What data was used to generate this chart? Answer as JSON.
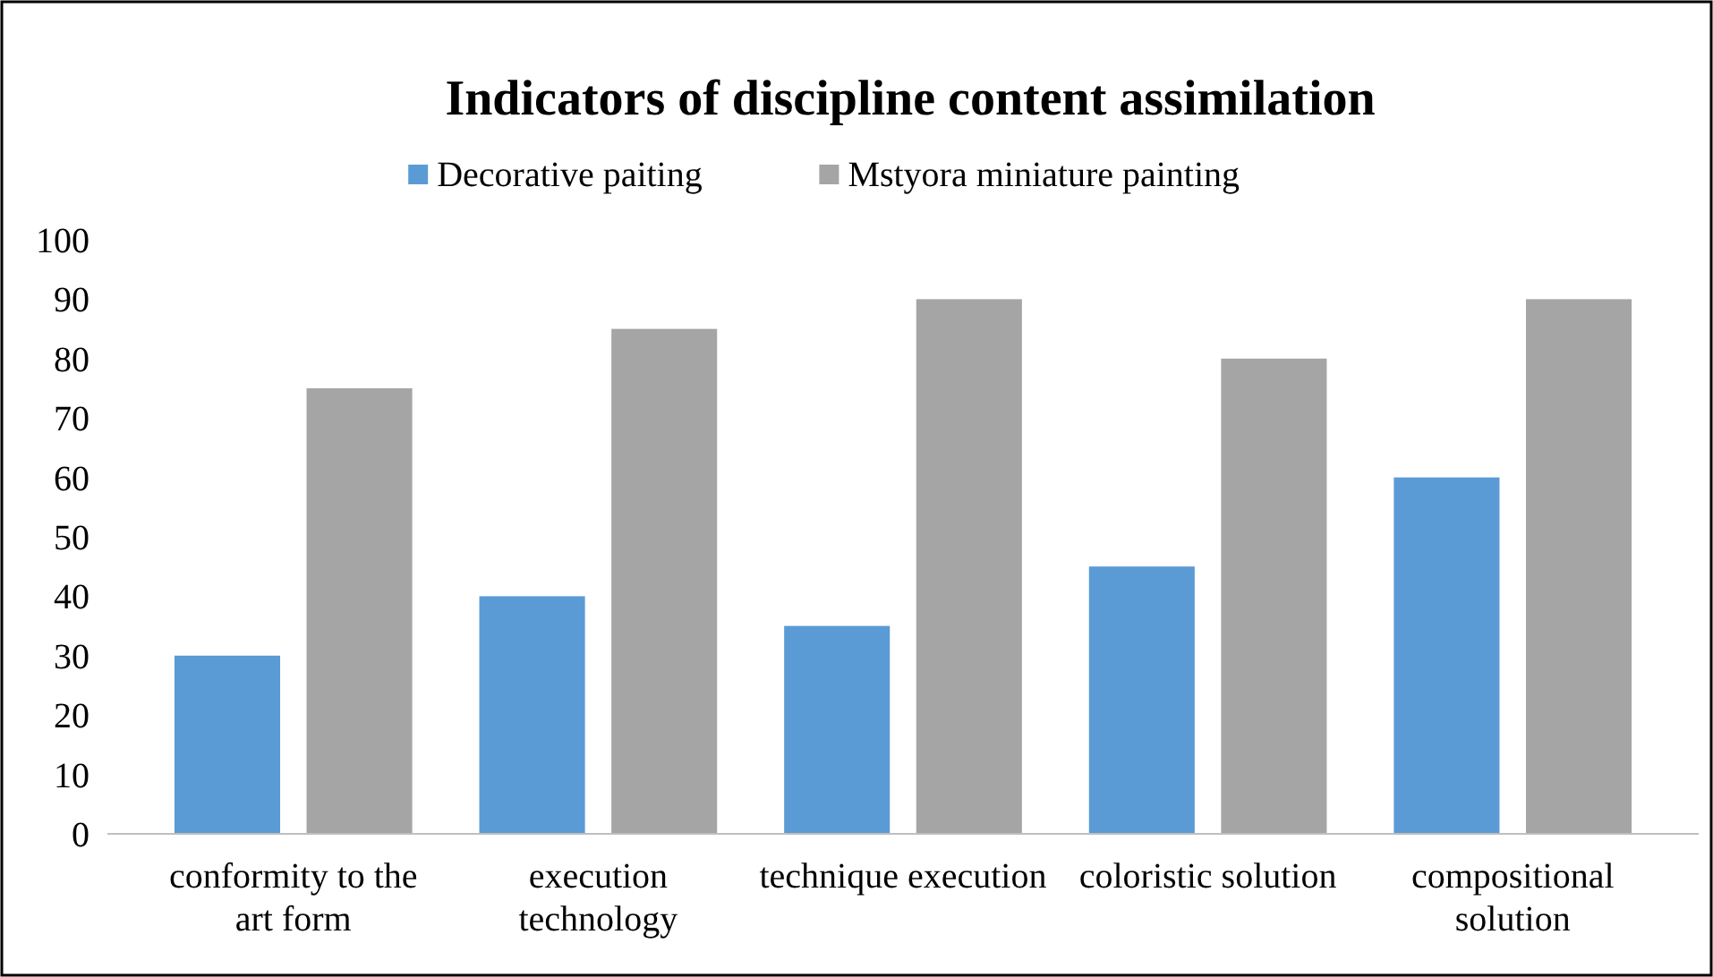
{
  "chart_data": {
    "type": "bar",
    "title": "Indicators of discipline content assimilation",
    "categories": [
      "conformity to the art form",
      "execution technology",
      "technique execution",
      "coloristic solution",
      "compositional solution"
    ],
    "series": [
      {
        "name": "Decorative paiting",
        "color": "#5b9bd5",
        "values": [
          30,
          40,
          35,
          45,
          60
        ]
      },
      {
        "name": "Mstyora miniature painting",
        "color": "#a5a5a5",
        "values": [
          75,
          85,
          90,
          80,
          90
        ]
      }
    ],
    "ylim": [
      0,
      100
    ],
    "yticks": [
      0,
      10,
      20,
      30,
      40,
      50,
      60,
      70,
      80,
      90,
      100
    ],
    "grid": false,
    "legend": "top"
  }
}
